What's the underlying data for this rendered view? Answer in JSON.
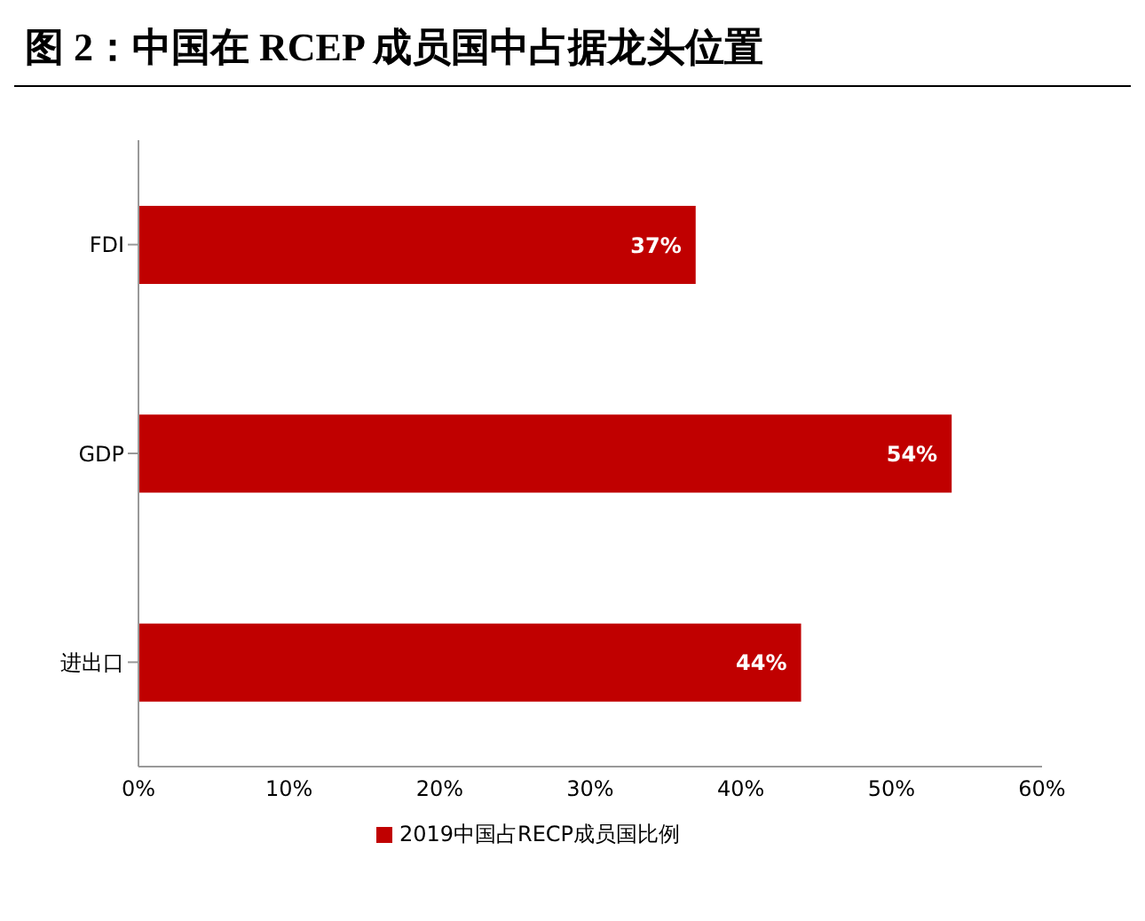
{
  "chart_data": {
    "type": "bar",
    "orientation": "horizontal",
    "title": "图 2：中国在 RCEP 成员国中占据龙头位置",
    "categories": [
      "FDI",
      "GDP",
      "进出口"
    ],
    "series": [
      {
        "name": "2019中国占RECP成员国比例",
        "color": "#c00000",
        "values": [
          37,
          54,
          44
        ],
        "value_labels": [
          "37%",
          "54%",
          "44%"
        ]
      }
    ],
    "xlim": [
      0,
      60
    ],
    "xticks": [
      {
        "value": 0,
        "label": "0%"
      },
      {
        "value": 10,
        "label": "10%"
      },
      {
        "value": 20,
        "label": "20%"
      },
      {
        "value": 30,
        "label": "30%"
      },
      {
        "value": 40,
        "label": "40%"
      },
      {
        "value": 50,
        "label": "50%"
      },
      {
        "value": 60,
        "label": "60%"
      }
    ],
    "grid": false,
    "legend": "bottom"
  }
}
